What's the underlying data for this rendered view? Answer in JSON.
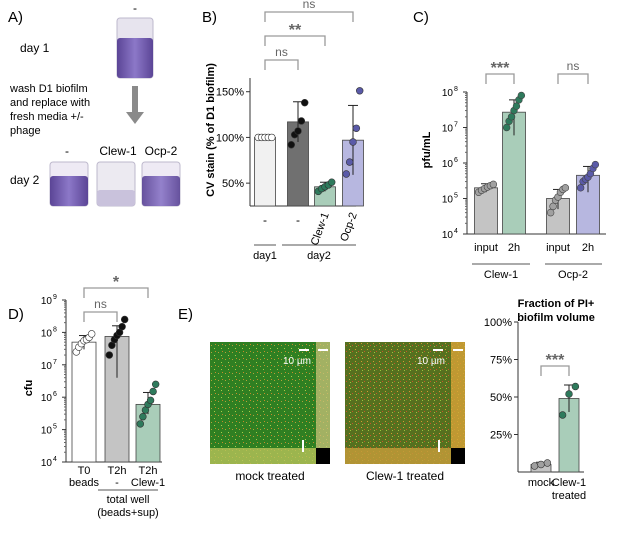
{
  "colors": {
    "crystal_violet": "#7a63b8",
    "light_bar": "#f1f1f1",
    "dark_bar": "#707070",
    "green_bar": "#a9cdb9",
    "green_dot": "#2e7a5c",
    "purple_bar": "#b7b7e0",
    "purple_dot": "#5a5aa8",
    "grey_bar": "#c4c4c4",
    "grey_dot": "#a0a0a0",
    "bracket": "#9a9a9a",
    "confocal_green": "#2f7f22"
  },
  "chart_data": [
    {
      "panel": "A)",
      "type": "other",
      "labels": {
        "dash_top": "-",
        "day1": "day 1",
        "wash": [
          "wash D1 biofilm",
          "and replace with",
          "fresh media +/-",
          "phage"
        ],
        "day2": "day 2",
        "tubes": [
          "-",
          "Clew-1",
          "Ocp-2"
        ]
      }
    },
    {
      "panel": "B)",
      "type": "bar",
      "ylabel": "CV stain (% of D1 biofilm)",
      "yticks": [
        "50%",
        "100%",
        "150%"
      ],
      "ylim": [
        25,
        165
      ],
      "categories": [
        "-",
        "-",
        "Clew-1",
        "Ocp-2"
      ],
      "groups": [
        "day1",
        "day2"
      ],
      "values": [
        100,
        117,
        46,
        97
      ],
      "errors": [
        0,
        22,
        5,
        38
      ],
      "points": [
        [
          100,
          100,
          100,
          100,
          100
        ],
        [
          92,
          103,
          107,
          118,
          138
        ],
        [
          41,
          44,
          46,
          48,
          51
        ],
        [
          60,
          73,
          95,
          110,
          151
        ]
      ],
      "significance": [
        {
          "label": "ns",
          "from": 0,
          "to": 1
        },
        {
          "label": "**",
          "from": 0,
          "to": 2
        },
        {
          "label": "ns",
          "from": 0,
          "to": 3
        }
      ]
    },
    {
      "panel": "C)",
      "type": "bar",
      "scale": "log",
      "ylabel": "pfu/mL",
      "ylim": [
        10000,
        100000000
      ],
      "yticks": [
        "10",
        "10",
        "10",
        "10",
        "10"
      ],
      "ytick_exps": [
        "4",
        "5",
        "6",
        "7",
        "8"
      ],
      "categories": [
        "input",
        "2h",
        "input",
        "2h"
      ],
      "groups": [
        "Clew-1",
        "Ocp-2"
      ],
      "values": [
        200000,
        27000000,
        100000,
        450000
      ],
      "err_low": [
        150000,
        6000000,
        50000,
        150000
      ],
      "err_high": [
        260000,
        60000000,
        180000,
        800000
      ],
      "points": [
        [
          150000,
          170000,
          190000,
          210000,
          230000,
          250000
        ],
        [
          10000000,
          15000000,
          20000000,
          30000000,
          40000000,
          60000000,
          80000000
        ],
        [
          40000,
          60000,
          90000,
          110000,
          150000,
          180000,
          200000
        ],
        [
          200000,
          300000,
          350000,
          400000,
          500000,
          700000,
          900000
        ]
      ],
      "significance": [
        {
          "label": "***",
          "from": 0,
          "to": 1
        },
        {
          "label": "ns",
          "from": 2,
          "to": 3
        }
      ]
    },
    {
      "panel": "D)",
      "type": "bar",
      "scale": "log",
      "ylabel": "cfu",
      "ylim": [
        10000,
        1000000000
      ],
      "yticks": [
        "10",
        "10",
        "10",
        "10",
        "10",
        "10"
      ],
      "ytick_exps": [
        "4",
        "5",
        "6",
        "7",
        "8",
        "9"
      ],
      "categories": [
        [
          "T0",
          "beads"
        ],
        [
          "T2h",
          "-"
        ],
        [
          "T2h",
          "Clew-1"
        ]
      ],
      "group_label": [
        "total well",
        "(beads+sup)"
      ],
      "values": [
        50000000,
        75000000,
        600000
      ],
      "err_low": [
        30000000,
        4000000,
        300000
      ],
      "err_high": [
        80000000,
        160000000,
        1400000
      ],
      "points": [
        [
          25000000,
          35000000,
          45000000,
          55000000,
          60000000,
          70000000,
          90000000
        ],
        [
          20000000,
          40000000,
          60000000,
          80000000,
          100000000,
          150000000,
          250000000
        ],
        [
          150000,
          250000,
          400000,
          600000,
          800000,
          1500000,
          2500000
        ]
      ],
      "significance": [
        {
          "label": "ns",
          "from": 0,
          "to": 1
        },
        {
          "label": "*",
          "from": 0,
          "to": 2
        }
      ]
    },
    {
      "panel": "E)",
      "type": "bar",
      "images": [
        {
          "caption": "mock treated",
          "scale_label": "10 µm"
        },
        {
          "caption": "Clew-1 treated",
          "scale_label": "10 µm"
        }
      ],
      "title": [
        "Fraction of PI+",
        "biofilm volume"
      ],
      "yticks": [
        "25%",
        "50%",
        "75%",
        "100%"
      ],
      "ylim": [
        0,
        100
      ],
      "categories": [
        [
          "mock"
        ],
        [
          "Clew-1",
          "treated"
        ]
      ],
      "values": [
        5,
        49
      ],
      "errors": [
        1.5,
        9
      ],
      "points": [
        [
          4,
          5,
          6
        ],
        [
          38,
          52,
          57
        ]
      ],
      "significance": [
        {
          "label": "***",
          "from": 0,
          "to": 1
        }
      ]
    }
  ]
}
